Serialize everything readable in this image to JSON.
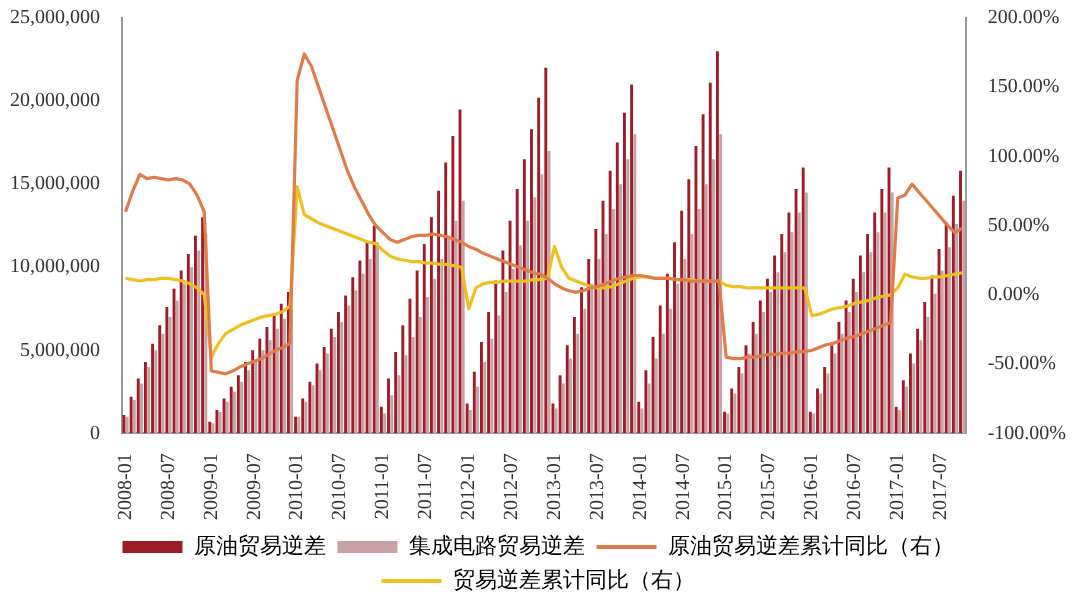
{
  "chart_data": {
    "type": "bar",
    "categories": [
      "2008-01",
      null,
      null,
      null,
      null,
      null,
      "2008-07",
      null,
      null,
      null,
      null,
      null,
      "2009-01",
      null,
      null,
      null,
      null,
      null,
      "2009-07",
      null,
      null,
      null,
      null,
      null,
      "2010-01",
      null,
      null,
      null,
      null,
      null,
      "2010-07",
      null,
      null,
      null,
      null,
      null,
      "2011-01",
      null,
      null,
      null,
      null,
      null,
      "2011-07",
      null,
      null,
      null,
      null,
      null,
      "2012-01",
      null,
      null,
      null,
      null,
      null,
      "2012-07",
      null,
      null,
      null,
      null,
      null,
      "2013-01",
      null,
      null,
      null,
      null,
      null,
      "2013-07",
      null,
      null,
      null,
      null,
      null,
      "2014-01",
      null,
      null,
      null,
      null,
      null,
      "2014-07",
      null,
      null,
      null,
      null,
      null,
      "2015-01",
      null,
      null,
      null,
      null,
      null,
      "2015-07",
      null,
      null,
      null,
      null,
      null,
      "2016-01",
      null,
      null,
      null,
      null,
      null,
      "2016-07",
      null,
      null,
      null,
      null,
      null,
      "2017-01",
      null,
      null,
      null,
      null,
      null,
      "2017-07",
      null,
      null,
      null
    ],
    "series": [
      {
        "name": "原油贸易逆差",
        "color": "#9e1b28",
        "values": [
          1100000,
          2200000,
          3300000,
          4300000,
          5400000,
          6500000,
          7600000,
          8700000,
          9800000,
          10800000,
          11900000,
          13000000,
          700000,
          1400000,
          2100000,
          2800000,
          3500000,
          4300000,
          5000000,
          5700000,
          6400000,
          7100000,
          7800000,
          8500000,
          1000000,
          2100000,
          3100000,
          4200000,
          5200000,
          6300000,
          7300000,
          8300000,
          9400000,
          10400000,
          11500000,
          12500000,
          1600000,
          3300000,
          4900000,
          6500000,
          8100000,
          9800000,
          11400000,
          13000000,
          14600000,
          16300000,
          17900000,
          19500000,
          1800000,
          3700000,
          5500000,
          7300000,
          9200000,
          11000000,
          12800000,
          14700000,
          16500000,
          18300000,
          20200000,
          22000000,
          1800000,
          3500000,
          5300000,
          7000000,
          8800000,
          10500000,
          12300000,
          14000000,
          15800000,
          17500000,
          19300000,
          21000000,
          1900000,
          3800000,
          5800000,
          7700000,
          9600000,
          11500000,
          13400000,
          15300000,
          17300000,
          19200000,
          21100000,
          23000000,
          1300000,
          2700000,
          4000000,
          5300000,
          6700000,
          8000000,
          9300000,
          10700000,
          12000000,
          13300000,
          14700000,
          16000000,
          1300000,
          2700000,
          4000000,
          5300000,
          6700000,
          8000000,
          9300000,
          10700000,
          12000000,
          13300000,
          14700000,
          16000000,
          1600000,
          3200000,
          4800000,
          6300000,
          7900000,
          9500000,
          11100000,
          12700000,
          14300000,
          15800000
        ]
      },
      {
        "name": "集成电路贸易逆差",
        "color": "#c9a0a4",
        "values": [
          1000000,
          2000000,
          3000000,
          4000000,
          5000000,
          6000000,
          7000000,
          8000000,
          9000000,
          10000000,
          11000000,
          12000000,
          600000,
          1300000,
          1900000,
          2500000,
          3100000,
          3800000,
          4400000,
          5000000,
          5600000,
          6300000,
          6900000,
          7500000,
          1000000,
          1900000,
          2900000,
          3800000,
          4800000,
          5800000,
          6700000,
          7700000,
          8600000,
          9600000,
          10500000,
          11500000,
          1200000,
          2300000,
          3500000,
          4700000,
          5800000,
          7000000,
          8200000,
          9300000,
          10500000,
          11700000,
          12800000,
          14000000,
          1400000,
          2800000,
          4300000,
          5700000,
          7100000,
          8500000,
          9900000,
          11300000,
          12800000,
          14200000,
          15600000,
          17000000,
          1500000,
          3000000,
          4500000,
          6000000,
          7500000,
          9000000,
          10500000,
          12000000,
          13500000,
          15000000,
          16500000,
          18000000,
          1500000,
          3000000,
          4500000,
          6000000,
          7500000,
          9000000,
          10500000,
          12000000,
          13500000,
          15000000,
          16500000,
          18000000,
          1200000,
          2400000,
          3600000,
          4800000,
          6000000,
          7300000,
          8500000,
          9700000,
          10900000,
          12100000,
          13300000,
          14500000,
          1200000,
          2400000,
          3600000,
          4800000,
          6000000,
          7300000,
          8500000,
          9700000,
          10900000,
          12100000,
          13300000,
          14500000,
          1400000,
          2800000,
          4200000,
          5600000,
          7000000,
          8400000,
          9800000,
          11200000,
          12600000,
          14000000
        ]
      },
      {
        "name": "原油贸易逆差累计同比（右）",
        "type": "line",
        "axis": "y2",
        "color": "#e07b4a",
        "values": [
          60,
          75,
          87,
          84,
          85,
          84,
          83,
          84,
          83,
          80,
          72,
          60,
          -55,
          -56,
          -57,
          -55,
          -52,
          -50,
          -48,
          -46,
          -43,
          -40,
          -38,
          -35,
          155,
          174,
          165,
          150,
          135,
          120,
          105,
          90,
          78,
          68,
          58,
          50,
          45,
          40,
          38,
          40,
          42,
          43,
          43,
          44,
          43,
          42,
          40,
          38,
          35,
          33,
          30,
          28,
          26,
          24,
          22,
          20,
          18,
          16,
          15,
          12,
          8,
          5,
          3,
          2,
          3,
          5,
          6,
          8,
          10,
          12,
          13,
          14,
          14,
          13,
          12,
          12,
          12,
          11,
          11,
          10,
          10,
          10,
          10,
          10,
          -45,
          -46,
          -46,
          -45,
          -45,
          -44,
          -43,
          -43,
          -42,
          -42,
          -41,
          -41,
          -40,
          -38,
          -36,
          -35,
          -33,
          -31,
          -30,
          -28,
          -26,
          -24,
          -22,
          -20,
          70,
          72,
          80,
          74,
          68,
          62,
          56,
          50,
          45,
          48
        ]
      },
      {
        "name": "贸易逆差累计同比（右）",
        "type": "line",
        "axis": "y2",
        "color": "#f0c020",
        "values": [
          12,
          11,
          10,
          11,
          11,
          12,
          12,
          11,
          10,
          8,
          5,
          0,
          -45,
          -35,
          -28,
          -25,
          -22,
          -20,
          -18,
          -16,
          -15,
          -14,
          -12,
          -8,
          78,
          58,
          55,
          52,
          50,
          48,
          46,
          44,
          42,
          40,
          38,
          37,
          32,
          28,
          26,
          25,
          24,
          24,
          23,
          23,
          22,
          22,
          21,
          20,
          -10,
          5,
          8,
          9,
          9,
          10,
          10,
          10,
          10,
          11,
          11,
          12,
          35,
          20,
          12,
          10,
          8,
          6,
          5,
          5,
          6,
          8,
          10,
          12,
          13,
          13,
          12,
          12,
          12,
          11,
          11,
          11,
          10,
          10,
          10,
          10,
          7,
          6,
          6,
          5,
          5,
          5,
          5,
          5,
          5,
          5,
          5,
          5,
          -15,
          -14,
          -12,
          -10,
          -9,
          -8,
          -6,
          -5,
          -4,
          -2,
          -1,
          0,
          5,
          15,
          13,
          12,
          12,
          13,
          13,
          14,
          15,
          16
        ]
      }
    ],
    "ylim": [
      0,
      25000000
    ],
    "yticks": [
      {
        "value": 0,
        "label": "0"
      },
      {
        "value": 5000000,
        "label": "5,000,000"
      },
      {
        "value": 10000000,
        "label": "10,000,000"
      },
      {
        "value": 15000000,
        "label": "15,000,000"
      },
      {
        "value": 20000000,
        "label": "20,000,000"
      },
      {
        "value": 25000000,
        "label": "25,000,000"
      }
    ],
    "y2lim": [
      -100,
      200
    ],
    "y2ticks": [
      {
        "value": -100,
        "label": "-100.00%"
      },
      {
        "value": -50,
        "label": "-50.00%"
      },
      {
        "value": 0,
        "label": "0.00%"
      },
      {
        "value": 50,
        "label": "50.00%"
      },
      {
        "value": 100,
        "label": "100.00%"
      },
      {
        "value": 150,
        "label": "150.00%"
      },
      {
        "value": 200,
        "label": "200.00%"
      }
    ],
    "grid": false,
    "legend": "bottom",
    "marker": "none"
  }
}
